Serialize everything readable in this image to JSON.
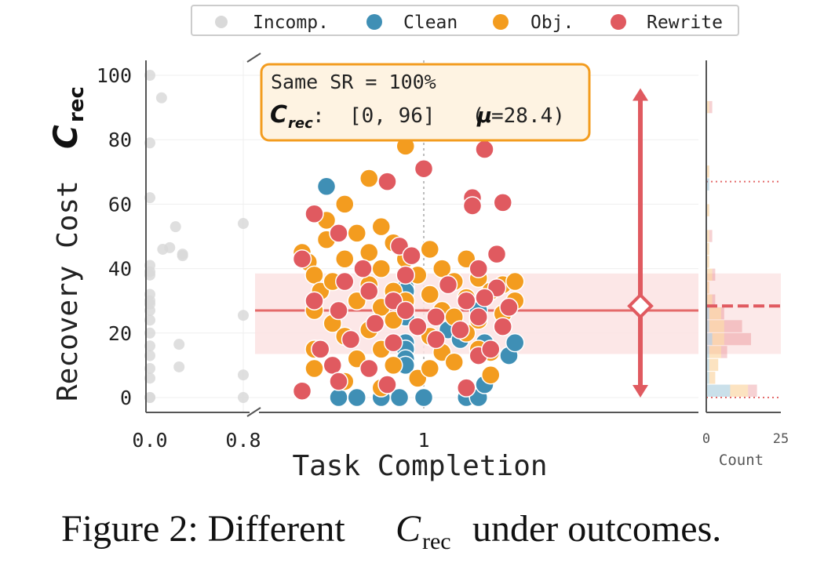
{
  "legend": {
    "items": [
      {
        "label": "Incomp.",
        "color": "#d9d9d9"
      },
      {
        "label": "Clean",
        "color": "#3f8fb5"
      },
      {
        "label": "Obj.",
        "color": "#f39c1f"
      },
      {
        "label": "Rewrite",
        "color": "#e05a60"
      }
    ]
  },
  "annotation": {
    "line1": "Same SR = 100%",
    "crec_label": "C",
    "crec_sub": "rec",
    "line2": ":  [0, 96]   (",
    "mu": "μ",
    "line2_tail": "=28.4)"
  },
  "caption": {
    "prefix": "Figure 2: Different ",
    "math": "C",
    "sub": "rec",
    "suffix": " under outcomes."
  },
  "chart_data": {
    "type": "scatter",
    "xlabel": "Task Completion",
    "ylabel": "Recovery Cost",
    "ylabel_math": "C",
    "ylabel_sub": "rec",
    "ylim": [
      -5,
      105
    ],
    "yticks": [
      0,
      20,
      40,
      60,
      80,
      100
    ],
    "xticks": [
      "0.0",
      "0.8",
      "1"
    ],
    "x_broken_axis": true,
    "mean": 28.4,
    "band": [
      13.5,
      38.5
    ],
    "range": [
      0,
      96
    ],
    "colors": {
      "Incomp.": "#d9d9d9",
      "Clean": "#3f8fb5",
      "Obj.": "#f39c1f",
      "Rewrite": "#e05a60",
      "mean_line": "#e46a6a",
      "band": "#fbe3e3",
      "annotation_bg": "#fef3e2",
      "annotation_border": "#f39c1f"
    },
    "series": [
      {
        "name": "Incomp.",
        "points": [
          {
            "x": 0.0,
            "y": 100
          },
          {
            "x": 0.0,
            "y": 79
          },
          {
            "x": 0.0,
            "y": 62
          },
          {
            "x": 0.0,
            "y": 41
          },
          {
            "x": 0.0,
            "y": 39
          },
          {
            "x": 0.0,
            "y": 38
          },
          {
            "x": 0.0,
            "y": 32
          },
          {
            "x": 0.0,
            "y": 30
          },
          {
            "x": 0.0,
            "y": 29
          },
          {
            "x": 0.0,
            "y": 27
          },
          {
            "x": 0.0,
            "y": 24
          },
          {
            "x": 0.0,
            "y": 20
          },
          {
            "x": 0.0,
            "y": 16
          },
          {
            "x": 0.0,
            "y": 13
          },
          {
            "x": 0.0,
            "y": 9
          },
          {
            "x": 0.0,
            "y": 6
          },
          {
            "x": 0.0,
            "y": 0
          },
          {
            "x": 0.0,
            "y": 0
          },
          {
            "x": 0.1,
            "y": 93
          },
          {
            "x": 0.11,
            "y": 46
          },
          {
            "x": 0.17,
            "y": 46.5
          },
          {
            "x": 0.22,
            "y": 53
          },
          {
            "x": 0.25,
            "y": 16.5
          },
          {
            "x": 0.25,
            "y": 9.5
          },
          {
            "x": 0.28,
            "y": 44
          },
          {
            "x": 0.28,
            "y": 44.5
          },
          {
            "x": 0.8,
            "y": 54
          },
          {
            "x": 0.8,
            "y": 25.5
          },
          {
            "x": 0.8,
            "y": 7
          },
          {
            "x": 0.8,
            "y": 0
          }
        ]
      },
      {
        "name": "Clean",
        "points": [
          {
            "x": 0.92,
            "y": 65.5
          },
          {
            "x": 0.985,
            "y": 34
          },
          {
            "x": 0.985,
            "y": 33
          },
          {
            "x": 0.985,
            "y": 25
          },
          {
            "x": 0.985,
            "y": 17
          },
          {
            "x": 0.985,
            "y": 15
          },
          {
            "x": 0.985,
            "y": 12
          },
          {
            "x": 0.985,
            "y": 10
          },
          {
            "x": 0.93,
            "y": 0
          },
          {
            "x": 0.945,
            "y": 0
          },
          {
            "x": 0.965,
            "y": 0
          },
          {
            "x": 0.98,
            "y": 0
          },
          {
            "x": 1.0,
            "y": 0
          },
          {
            "x": 1.035,
            "y": 0
          },
          {
            "x": 1.045,
            "y": 0
          },
          {
            "x": 1.02,
            "y": 21
          },
          {
            "x": 1.03,
            "y": 18
          },
          {
            "x": 1.045,
            "y": 27
          },
          {
            "x": 1.05,
            "y": 17
          },
          {
            "x": 1.05,
            "y": 4
          },
          {
            "x": 1.07,
            "y": 13
          },
          {
            "x": 1.075,
            "y": 17
          }
        ]
      },
      {
        "name": "Obj.",
        "points": [
          {
            "x": 0.9,
            "y": 45
          },
          {
            "x": 0.905,
            "y": 42
          },
          {
            "x": 0.91,
            "y": 38
          },
          {
            "x": 0.915,
            "y": 33
          },
          {
            "x": 0.91,
            "y": 27
          },
          {
            "x": 0.91,
            "y": 15
          },
          {
            "x": 0.91,
            "y": 9
          },
          {
            "x": 0.92,
            "y": 55
          },
          {
            "x": 0.92,
            "y": 49
          },
          {
            "x": 0.925,
            "y": 36
          },
          {
            "x": 0.925,
            "y": 23
          },
          {
            "x": 0.935,
            "y": 60
          },
          {
            "x": 0.935,
            "y": 43
          },
          {
            "x": 0.935,
            "y": 19
          },
          {
            "x": 0.935,
            "y": 5
          },
          {
            "x": 0.945,
            "y": 51
          },
          {
            "x": 0.945,
            "y": 30
          },
          {
            "x": 0.945,
            "y": 12
          },
          {
            "x": 0.955,
            "y": 68
          },
          {
            "x": 0.955,
            "y": 45
          },
          {
            "x": 0.955,
            "y": 35
          },
          {
            "x": 0.955,
            "y": 21
          },
          {
            "x": 0.965,
            "y": 53
          },
          {
            "x": 0.965,
            "y": 40
          },
          {
            "x": 0.965,
            "y": 28
          },
          {
            "x": 0.965,
            "y": 15
          },
          {
            "x": 0.965,
            "y": 3
          },
          {
            "x": 0.975,
            "y": 48
          },
          {
            "x": 0.975,
            "y": 33
          },
          {
            "x": 0.975,
            "y": 24
          },
          {
            "x": 0.975,
            "y": 10
          },
          {
            "x": 0.985,
            "y": 78
          },
          {
            "x": 0.985,
            "y": 43
          },
          {
            "x": 0.985,
            "y": 30
          },
          {
            "x": 0.995,
            "y": 38
          },
          {
            "x": 0.995,
            "y": 22
          },
          {
            "x": 0.995,
            "y": 6
          },
          {
            "x": 1.005,
            "y": 46
          },
          {
            "x": 1.005,
            "y": 32
          },
          {
            "x": 1.005,
            "y": 19
          },
          {
            "x": 1.005,
            "y": 9
          },
          {
            "x": 1.015,
            "y": 40
          },
          {
            "x": 1.015,
            "y": 27
          },
          {
            "x": 1.015,
            "y": 14
          },
          {
            "x": 1.025,
            "y": 36
          },
          {
            "x": 1.025,
            "y": 25
          },
          {
            "x": 1.025,
            "y": 11
          },
          {
            "x": 1.035,
            "y": 43
          },
          {
            "x": 1.035,
            "y": 31
          },
          {
            "x": 1.035,
            "y": 20
          },
          {
            "x": 1.045,
            "y": 37
          },
          {
            "x": 1.045,
            "y": 24
          },
          {
            "x": 1.045,
            "y": 15
          },
          {
            "x": 1.055,
            "y": 33
          },
          {
            "x": 1.055,
            "y": 14
          },
          {
            "x": 1.055,
            "y": 7
          },
          {
            "x": 1.065,
            "y": 35
          },
          {
            "x": 1.065,
            "y": 26
          },
          {
            "x": 1.075,
            "y": 36
          },
          {
            "x": 1.075,
            "y": 30
          }
        ]
      },
      {
        "name": "Rewrite",
        "points": [
          {
            "x": 0.97,
            "y": 96
          },
          {
            "x": 1.05,
            "y": 77
          },
          {
            "x": 1.0,
            "y": 71
          },
          {
            "x": 0.97,
            "y": 67
          },
          {
            "x": 1.04,
            "y": 62
          },
          {
            "x": 1.04,
            "y": 59.5
          },
          {
            "x": 1.065,
            "y": 60.5
          },
          {
            "x": 0.91,
            "y": 57
          },
          {
            "x": 0.93,
            "y": 51
          },
          {
            "x": 1.06,
            "y": 44.5
          },
          {
            "x": 0.98,
            "y": 47
          },
          {
            "x": 0.99,
            "y": 44
          },
          {
            "x": 0.9,
            "y": 43
          },
          {
            "x": 0.95,
            "y": 40
          },
          {
            "x": 1.045,
            "y": 40
          },
          {
            "x": 0.935,
            "y": 36
          },
          {
            "x": 0.985,
            "y": 38
          },
          {
            "x": 1.02,
            "y": 35
          },
          {
            "x": 1.06,
            "y": 34
          },
          {
            "x": 0.955,
            "y": 33
          },
          {
            "x": 0.975,
            "y": 30
          },
          {
            "x": 0.91,
            "y": 30
          },
          {
            "x": 1.035,
            "y": 30
          },
          {
            "x": 1.05,
            "y": 31
          },
          {
            "x": 1.07,
            "y": 28
          },
          {
            "x": 0.93,
            "y": 27
          },
          {
            "x": 0.985,
            "y": 27
          },
          {
            "x": 1.01,
            "y": 25
          },
          {
            "x": 1.045,
            "y": 25
          },
          {
            "x": 0.96,
            "y": 23
          },
          {
            "x": 0.995,
            "y": 22
          },
          {
            "x": 1.03,
            "y": 21
          },
          {
            "x": 1.065,
            "y": 22
          },
          {
            "x": 0.94,
            "y": 18
          },
          {
            "x": 0.975,
            "y": 17
          },
          {
            "x": 1.01,
            "y": 18
          },
          {
            "x": 0.915,
            "y": 15
          },
          {
            "x": 1.045,
            "y": 13
          },
          {
            "x": 0.925,
            "y": 10
          },
          {
            "x": 0.955,
            "y": 9
          },
          {
            "x": 1.055,
            "y": 15
          },
          {
            "x": 0.93,
            "y": 5
          },
          {
            "x": 0.97,
            "y": 4
          },
          {
            "x": 0.9,
            "y": 2
          },
          {
            "x": 1.035,
            "y": 3
          }
        ]
      }
    ],
    "histogram": {
      "xlabel": "Count",
      "xticks": [
        0,
        25
      ],
      "xlim": [
        0,
        25
      ],
      "bin_width": 4,
      "bins_start": 0,
      "dotted_lines": [
        67,
        0
      ],
      "mean": 28.4,
      "rewrite": [
        3,
        0,
        0,
        2,
        9,
        6,
        1,
        1,
        0,
        1,
        0,
        0,
        1,
        0,
        0,
        0,
        0,
        0,
        0,
        0,
        0,
        0,
        1,
        0,
        0
      ],
      "obj": [
        6,
        2,
        3,
        4,
        4,
        5,
        4,
        2,
        1,
        2,
        1,
        1,
        1,
        0,
        1,
        0,
        0,
        1,
        0,
        0,
        0,
        0,
        1,
        0,
        0
      ],
      "clean": [
        8,
        1,
        1,
        1,
        2,
        1,
        1,
        0,
        0,
        0,
        0,
        0,
        0,
        0,
        0,
        0,
        1,
        0,
        0,
        0,
        0,
        0,
        0,
        0,
        0
      ]
    }
  }
}
